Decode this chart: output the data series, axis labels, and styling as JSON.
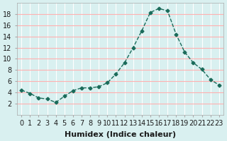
{
  "x": [
    0,
    1,
    2,
    3,
    4,
    5,
    6,
    7,
    8,
    9,
    10,
    11,
    12,
    13,
    14,
    15,
    16,
    17,
    18,
    19,
    20,
    21,
    22,
    23
  ],
  "y": [
    4.4,
    3.8,
    3.0,
    2.8,
    2.2,
    3.3,
    4.3,
    4.8,
    4.8,
    5.0,
    5.7,
    7.3,
    9.3,
    12.0,
    15.0,
    18.3,
    19.0,
    18.6,
    14.4,
    11.2,
    9.3,
    8.1,
    6.3,
    5.3
  ],
  "xlabel": "Humidex (Indice chaleur)",
  "ylabel": "",
  "line_color": "#1a6b5a",
  "marker_color": "#1a6b5a",
  "bg_color": "#d9f0f0",
  "grid_color": "#ffffff",
  "grid_minor_color": "#ffb0b0",
  "ylim": [
    0,
    20
  ],
  "xlim": [
    -0.5,
    23.5
  ],
  "yticks": [
    2,
    4,
    6,
    8,
    10,
    12,
    14,
    16,
    18
  ],
  "xtick_labels": [
    "0",
    "1",
    "2",
    "3",
    "4",
    "5",
    "6",
    "7",
    "8",
    "9",
    "10",
    "11",
    "12",
    "13",
    "14",
    "15",
    "16",
    "17",
    "18",
    "19",
    "20",
    "21",
    "22",
    "23"
  ],
  "xlabel_fontsize": 8,
  "tick_fontsize": 7
}
